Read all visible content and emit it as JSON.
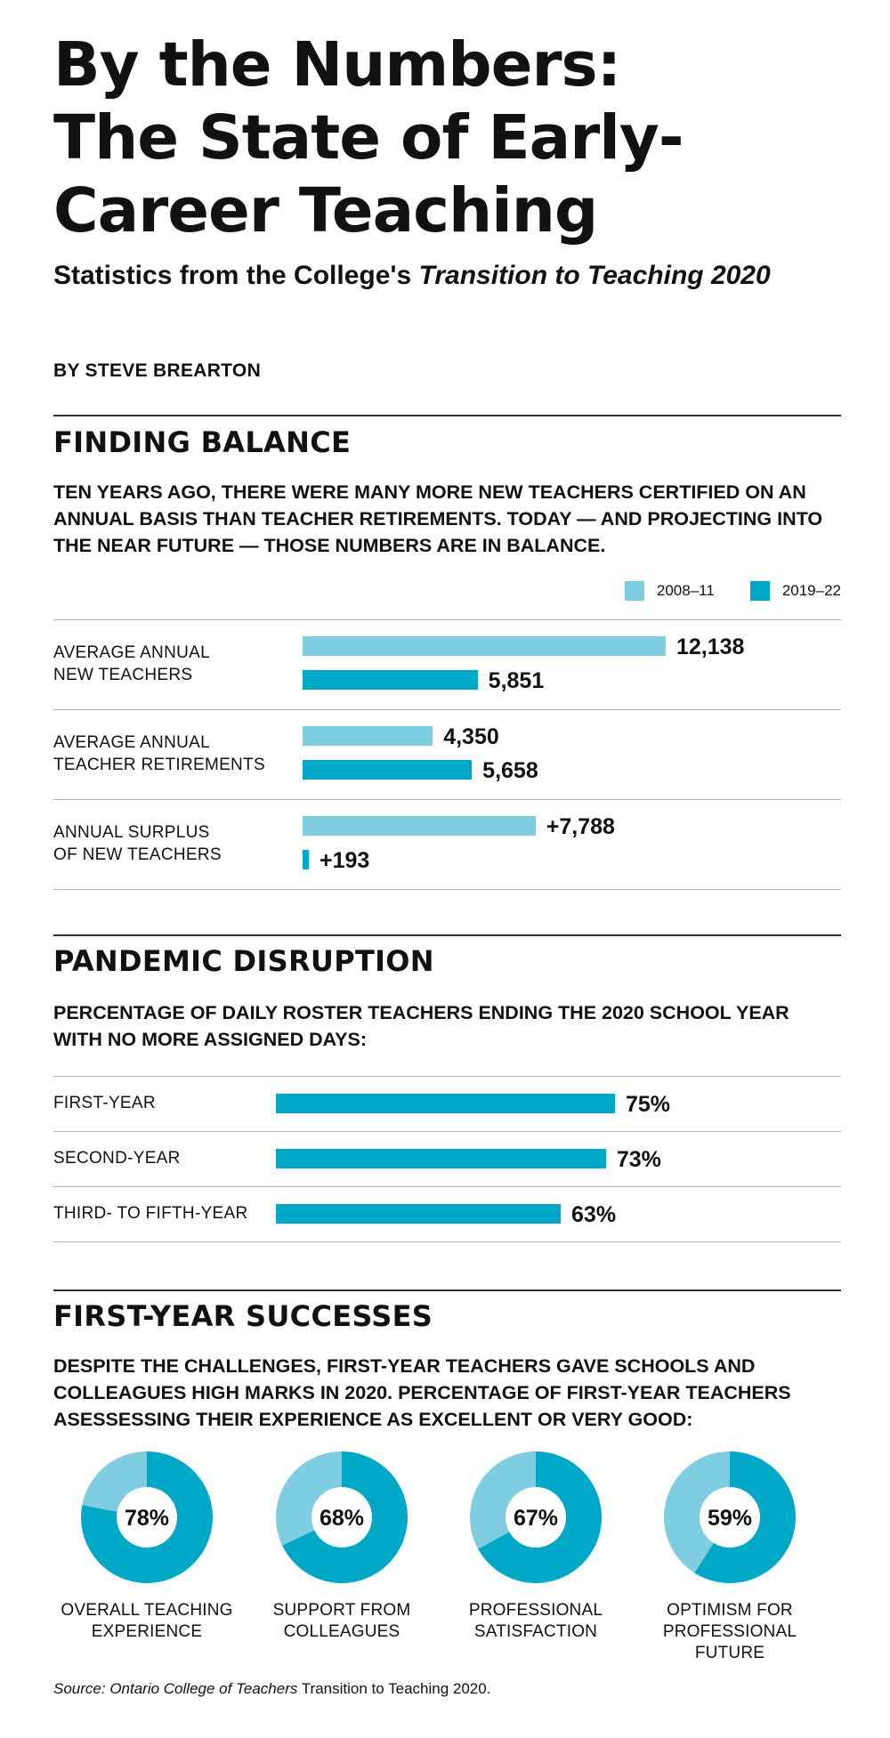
{
  "header": {
    "title": "By the Numbers:\nThe State of Early-\nCareer Teaching",
    "subtitle_plain": "Statistics from the College's ",
    "subtitle_italic": "Transition to Teaching 2020",
    "byline": "BY STEVE BREARTON"
  },
  "colors": {
    "light": "#7ecde1",
    "dark": "#00a8c8"
  },
  "sections": {
    "balance": {
      "title": "FINDING BALANCE",
      "desc": "TEN YEARS AGO, THERE WERE MANY MORE NEW TEACHERS CERTIFIED ON AN ANNUAL BASIS THAN TEACHER RETIREMENTS. TODAY — AND PROJECTING INTO THE NEAR FUTURE — THOSE NUMBERS ARE IN BALANCE."
    },
    "pandemic": {
      "title": "PANDEMIC DISRUPTION",
      "desc": "PERCENTAGE OF DAILY ROSTER TEACHERS ENDING THE 2020 SCHOOL YEAR WITH NO MORE ASSIGNED DAYS:"
    },
    "successes": {
      "title": "FIRST-YEAR SUCCESSES",
      "desc": "DESPITE THE CHALLENGES, FIRST-YEAR TEACHERS GAVE SCHOOLS AND COLLEAGUES HIGH MARKS IN 2020. PERCENTAGE OF FIRST-YEAR TEACHERS ASESSESSING THEIR EXPERIENCE AS EXCELLENT OR VERY GOOD:"
    }
  },
  "source": {
    "label": "Source: ",
    "italic": "Ontario College of Teachers",
    "rest": " Transition to Teaching 2020."
  },
  "chart_data": [
    {
      "type": "bar",
      "orientation": "horizontal",
      "categories": [
        "AVERAGE ANNUAL\nNEW TEACHERS",
        "AVERAGE ANNUAL\nTEACHER RETIREMENTS",
        "ANNUAL SURPLUS\nOF NEW TEACHERS"
      ],
      "series": [
        {
          "name": "2008–11",
          "color": "#7ecde1",
          "values": [
            12138,
            4350,
            7788
          ],
          "labels": [
            "12,138",
            "4,350",
            "+7,788"
          ]
        },
        {
          "name": "2019–22",
          "color": "#00a8c8",
          "values": [
            5851,
            5658,
            193
          ],
          "labels": [
            "5,851",
            "5,658",
            "+193"
          ]
        }
      ],
      "legend": "top-right",
      "xlim": [
        0,
        12138
      ]
    },
    {
      "type": "bar",
      "orientation": "horizontal",
      "categories": [
        "FIRST-YEAR",
        "SECOND-YEAR",
        "THIRD- TO FIFTH-YEAR"
      ],
      "values": [
        75,
        73,
        63
      ],
      "labels": [
        "75%",
        "73%",
        "63%"
      ],
      "color": "#00a8c8",
      "xlim": [
        0,
        100
      ]
    },
    {
      "type": "pie",
      "style": "donut",
      "items": [
        {
          "label": "OVERALL TEACHING\nEXPERIENCE",
          "value": 78,
          "display": "78%"
        },
        {
          "label": "SUPPORT FROM\nCOLLEAGUES",
          "value": 68,
          "display": "68%"
        },
        {
          "label": "PROFESSIONAL\nSATISFACTION",
          "value": 67,
          "display": "67%"
        },
        {
          "label": "OPTIMISM FOR\nPROFESSIONAL FUTURE",
          "value": 59,
          "display": "59%"
        }
      ],
      "colors": {
        "value": "#00a8c8",
        "remainder": "#7ecde1"
      }
    }
  ]
}
